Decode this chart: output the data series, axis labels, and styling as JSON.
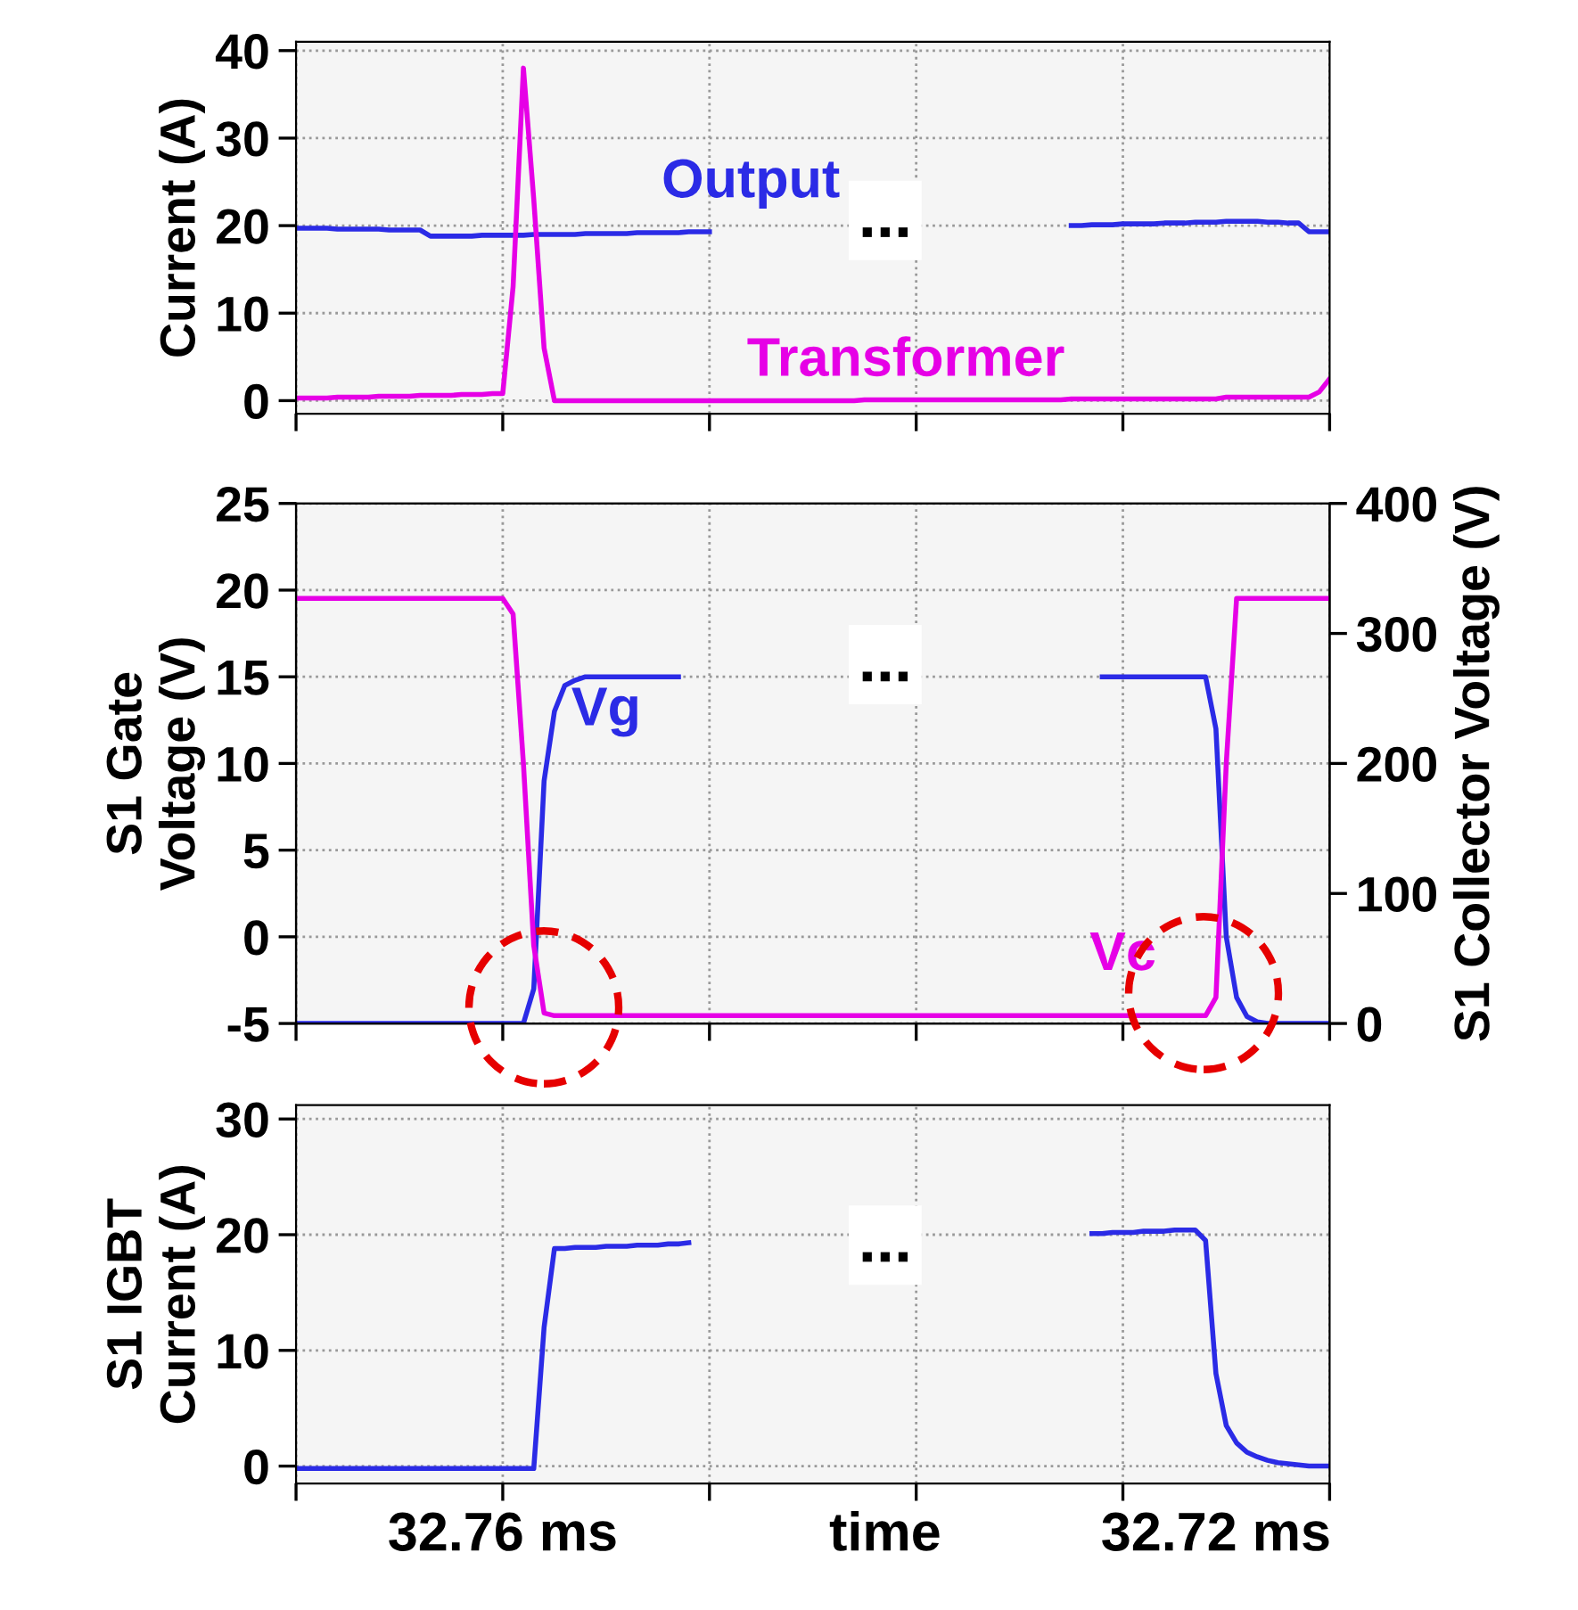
{
  "chart_data": [
    {
      "type": "line",
      "ylabel": "Current (A)",
      "categories": [
        null,
        null,
        null,
        null,
        null,
        null,
        null,
        null,
        null,
        null,
        null,
        null,
        null,
        null,
        null,
        null,
        null,
        null,
        null,
        null,
        null,
        null,
        null,
        null,
        null,
        null,
        null,
        null,
        null,
        null,
        null,
        null,
        null,
        null,
        null,
        null,
        null,
        null,
        null,
        null,
        null,
        null,
        null,
        null,
        null,
        null,
        null,
        null,
        null,
        null,
        null,
        null,
        null,
        null,
        null,
        null,
        null,
        null,
        null,
        null,
        null,
        null,
        null,
        null,
        null,
        null,
        null,
        null,
        null,
        null,
        null,
        null,
        null,
        null,
        null,
        null,
        null,
        null,
        null,
        null,
        null,
        null,
        null,
        null,
        null,
        null,
        null,
        null,
        null,
        null,
        null,
        null,
        null,
        null,
        null,
        null,
        null,
        null,
        null,
        null,
        null
      ],
      "ylim": [
        -1.5,
        41
      ],
      "yticks": [
        0,
        10,
        20,
        30,
        40
      ],
      "grid": true,
      "series": [
        {
          "name": "Output",
          "color": "#2b2be6",
          "values": [
            19.7,
            19.7,
            19.7,
            19.7,
            19.6,
            19.6,
            19.6,
            19.6,
            19.6,
            19.5,
            19.5,
            19.5,
            19.5,
            18.8,
            18.8,
            18.8,
            18.8,
            18.8,
            18.9,
            18.9,
            18.9,
            18.9,
            18.9,
            19.0,
            19.0,
            19.0,
            19.0,
            19.0,
            19.1,
            19.1,
            19.1,
            19.1,
            19.1,
            19.2,
            19.2,
            19.2,
            19.2,
            19.2,
            19.3,
            19.3,
            19.3,
            null,
            null,
            null,
            null,
            null,
            null,
            null,
            null,
            null,
            null,
            null,
            null,
            null,
            null,
            null,
            null,
            null,
            null,
            null,
            null,
            null,
            null,
            null,
            null,
            null,
            null,
            null,
            null,
            null,
            null,
            null,
            null,
            null,
            null,
            20.0,
            20.0,
            20.1,
            20.1,
            20.1,
            20.2,
            20.2,
            20.2,
            20.2,
            20.3,
            20.3,
            20.3,
            20.4,
            20.4,
            20.4,
            20.5,
            20.5,
            20.5,
            20.5,
            20.4,
            20.4,
            20.3,
            20.3,
            19.3,
            19.3,
            19.3
          ]
        },
        {
          "name": "Transformer",
          "color": "#e600e6",
          "values": [
            0.3,
            0.3,
            0.3,
            0.3,
            0.4,
            0.4,
            0.4,
            0.4,
            0.5,
            0.5,
            0.5,
            0.5,
            0.6,
            0.6,
            0.6,
            0.6,
            0.7,
            0.7,
            0.7,
            0.8,
            0.8,
            13,
            38,
            23,
            6,
            0,
            0,
            0,
            0,
            0,
            0,
            0,
            0,
            0,
            0,
            0,
            0,
            0,
            0,
            0,
            0,
            0,
            0,
            0,
            0,
            0,
            0,
            0,
            0,
            0,
            0,
            0,
            0,
            0,
            0,
            0.1,
            0.1,
            0.1,
            0.1,
            0.1,
            0.1,
            0.1,
            0.1,
            0.1,
            0.1,
            0.1,
            0.1,
            0.1,
            0.1,
            0.1,
            0.1,
            0.1,
            0.1,
            0.1,
            0.1,
            0.2,
            0.2,
            0.2,
            0.2,
            0.2,
            0.2,
            0.2,
            0.2,
            0.2,
            0.2,
            0.2,
            0.2,
            0.2,
            0.2,
            0.2,
            0.4,
            0.4,
            0.4,
            0.4,
            0.4,
            0.4,
            0.4,
            0.4,
            0.4,
            1,
            2.5
          ]
        }
      ],
      "annotations": [
        "..."
      ]
    },
    {
      "type": "line",
      "ylabel": "S1 Gate\nVoltage (V)",
      "y2label": "S1 Collector Voltage (V)",
      "categories": [
        null,
        null,
        null,
        null,
        null,
        null,
        null,
        null,
        null,
        null,
        null,
        null,
        null,
        null,
        null,
        null,
        null,
        null,
        null,
        null,
        null,
        null,
        null,
        null,
        null,
        null,
        null,
        null,
        null,
        null,
        null,
        null,
        null,
        null,
        null,
        null,
        null,
        null,
        null,
        null,
        null,
        null,
        null,
        null,
        null,
        null,
        null,
        null,
        null,
        null,
        null,
        null,
        null,
        null,
        null,
        null,
        null,
        null,
        null,
        null,
        null,
        null,
        null,
        null,
        null,
        null,
        null,
        null,
        null,
        null,
        null,
        null,
        null,
        null,
        null,
        null,
        null,
        null,
        null,
        null,
        null,
        null,
        null,
        null,
        null,
        null,
        null,
        null,
        null,
        null,
        null,
        null,
        null,
        null,
        null,
        null,
        null,
        null,
        null,
        null,
        null
      ],
      "ylim": [
        -5,
        25
      ],
      "yticks": [
        -5,
        0,
        5,
        10,
        15,
        20,
        25
      ],
      "y2lim": [
        0,
        400
      ],
      "y2ticks": [
        0,
        100,
        200,
        300,
        400
      ],
      "grid": true,
      "series": [
        {
          "name": "Vg",
          "color": "#2b2be6",
          "values": [
            -5,
            -5,
            -5,
            -5,
            -5,
            -5,
            -5,
            -5,
            -5,
            -5,
            -5,
            -5,
            -5,
            -5,
            -5,
            -5,
            -5,
            -5,
            -5,
            -5,
            -5,
            -5,
            -5,
            -3,
            9,
            13,
            14.5,
            14.8,
            15,
            15,
            15,
            15,
            15,
            15,
            15,
            15,
            15,
            15,
            null,
            null,
            null,
            null,
            null,
            null,
            null,
            null,
            null,
            null,
            null,
            null,
            null,
            null,
            null,
            null,
            null,
            null,
            null,
            null,
            null,
            null,
            null,
            null,
            null,
            null,
            null,
            null,
            null,
            null,
            null,
            null,
            null,
            null,
            null,
            null,
            null,
            null,
            null,
            null,
            15,
            15,
            15,
            15,
            15,
            15,
            15,
            15,
            15,
            15,
            15,
            12,
            0,
            -3.5,
            -4.6,
            -4.9,
            -5,
            -5,
            -5,
            -5,
            -5,
            -5,
            -5
          ]
        },
        {
          "name": "Vc",
          "color": "#e600e6",
          "axis": "y2",
          "values": [
            327,
            327,
            327,
            327,
            327,
            327,
            327,
            327,
            327,
            327,
            327,
            327,
            327,
            327,
            327,
            327,
            327,
            327,
            327,
            327,
            327,
            315,
            200,
            60,
            8,
            6,
            6,
            6,
            6,
            6,
            6,
            6,
            6,
            6,
            6,
            6,
            6,
            6,
            6,
            6,
            6,
            6,
            6,
            6,
            6,
            6,
            6,
            6,
            6,
            6,
            6,
            6,
            6,
            6,
            6,
            6,
            6,
            6,
            6,
            6,
            6,
            6,
            6,
            6,
            6,
            6,
            6,
            6,
            6,
            6,
            6,
            6,
            6,
            6,
            6,
            6,
            6,
            6,
            6,
            6,
            6,
            6,
            6,
            6,
            6,
            6,
            6,
            6,
            6,
            20,
            200,
            327,
            327,
            327,
            327,
            327,
            327,
            327,
            327,
            327,
            327
          ]
        }
      ],
      "annotations": [
        "..."
      ]
    },
    {
      "type": "line",
      "ylabel": "S1 IGBT\nCurrent (A)",
      "xlabel": "time",
      "categories": [
        null,
        null,
        null,
        null,
        null,
        null,
        null,
        null,
        null,
        null,
        null,
        null,
        null,
        null,
        null,
        null,
        null,
        null,
        null,
        null,
        null,
        null,
        null,
        null,
        null,
        null,
        null,
        null,
        null,
        null,
        null,
        null,
        null,
        null,
        null,
        null,
        null,
        null,
        null,
        null,
        null,
        null,
        null,
        null,
        null,
        null,
        null,
        null,
        null,
        null,
        null,
        null,
        null,
        null,
        null,
        null,
        null,
        null,
        null,
        null,
        null,
        null,
        null,
        null,
        null,
        null,
        null,
        null,
        null,
        null,
        null,
        null,
        null,
        null,
        null,
        null,
        null,
        null,
        null,
        null,
        null,
        null,
        null,
        null,
        null,
        null,
        null,
        null,
        null,
        null,
        null,
        null,
        null,
        null,
        null,
        null,
        null,
        null,
        null,
        null,
        null
      ],
      "ylim": [
        -1.5,
        31.2
      ],
      "yticks": [
        0,
        10,
        20,
        30
      ],
      "grid": true,
      "series": [
        {
          "color": "#2b2be6",
          "values": [
            -0.2,
            -0.2,
            -0.2,
            -0.2,
            -0.2,
            -0.2,
            -0.2,
            -0.2,
            -0.2,
            -0.2,
            -0.2,
            -0.2,
            -0.2,
            -0.2,
            -0.2,
            -0.2,
            -0.2,
            -0.2,
            -0.2,
            -0.2,
            -0.2,
            -0.2,
            -0.2,
            -0.2,
            12,
            18.8,
            18.8,
            18.9,
            18.9,
            18.9,
            19.0,
            19.0,
            19.0,
            19.1,
            19.1,
            19.1,
            19.2,
            19.2,
            19.3,
            null,
            null,
            null,
            null,
            null,
            null,
            null,
            null,
            null,
            null,
            null,
            null,
            null,
            null,
            null,
            null,
            null,
            null,
            null,
            null,
            null,
            null,
            null,
            null,
            null,
            null,
            null,
            null,
            null,
            null,
            null,
            null,
            null,
            null,
            null,
            null,
            null,
            null,
            20.1,
            20.1,
            20.2,
            20.2,
            20.2,
            20.3,
            20.3,
            20.3,
            20.4,
            20.4,
            20.4,
            19.5,
            8,
            3.5,
            2,
            1.2,
            0.8,
            0.5,
            0.3,
            0.2,
            0.1,
            0,
            0,
            0
          ]
        }
      ],
      "annotations": [
        "...",
        "32.76 ms",
        "32.72 ms"
      ]
    }
  ]
}
